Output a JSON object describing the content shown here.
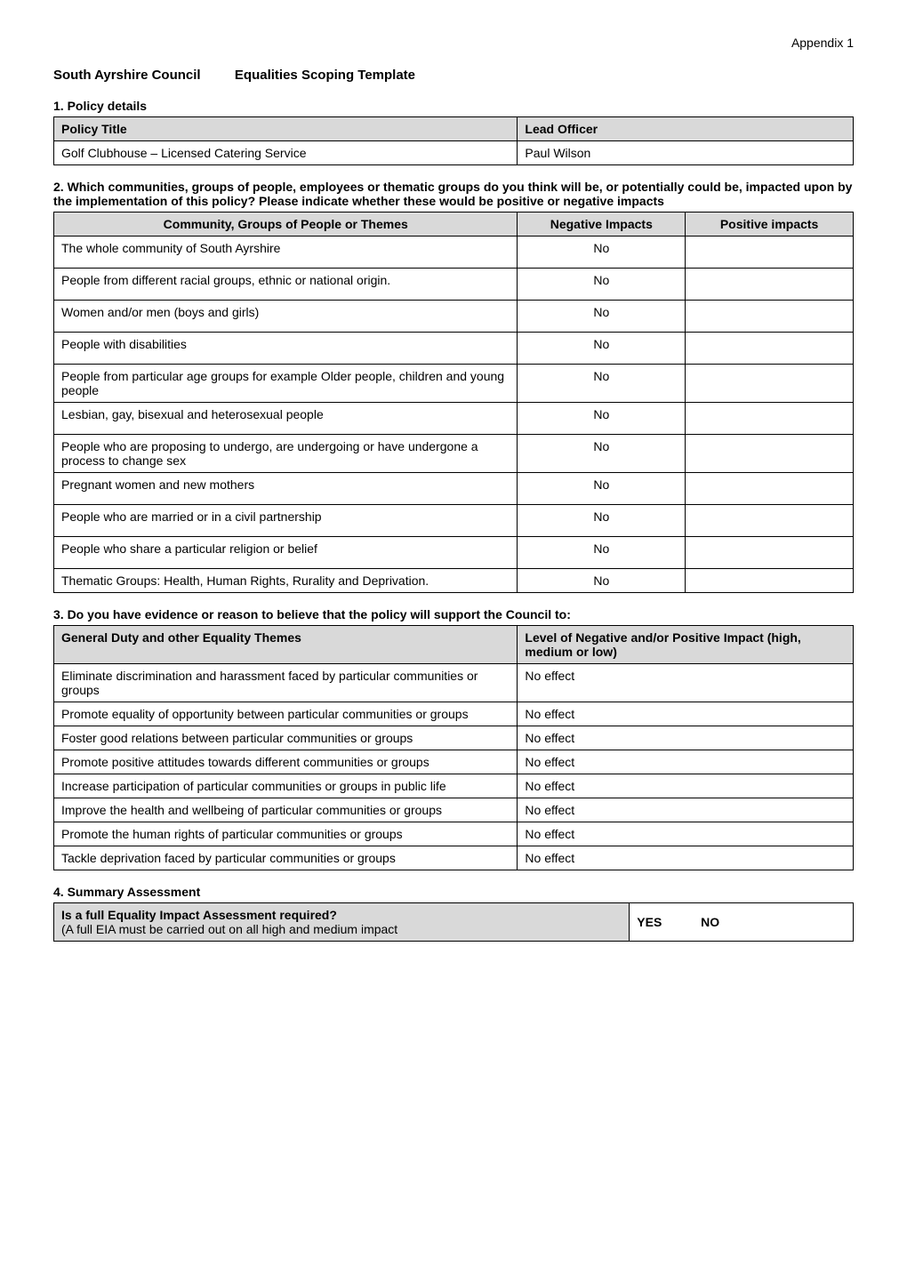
{
  "appendix": "Appendix 1",
  "main_heading_left": "South Ayrshire Council",
  "main_heading_right": "Equalities Scoping Template",
  "section1": {
    "heading": "1.  Policy details",
    "cols": [
      "Policy Title",
      "Lead Officer"
    ],
    "row": [
      "Golf Clubhouse – Licensed Catering Service",
      "Paul Wilson"
    ]
  },
  "section2": {
    "heading": "2.  Which communities, groups of people, employees or thematic groups do you think will be, or potentially could be, impacted upon by the implementation of this policy? Please indicate whether these would be positive or negative impacts",
    "cols": [
      "Community, Groups of People or Themes",
      "Negative Impacts",
      "Positive impacts"
    ],
    "rows": [
      [
        "The whole community of South Ayrshire",
        "No",
        ""
      ],
      [
        "People from different racial groups, ethnic or national origin.",
        "No",
        ""
      ],
      [
        "Women and/or men (boys and girls)",
        "No",
        ""
      ],
      [
        "People with disabilities",
        "No",
        ""
      ],
      [
        "People from particular age groups for example Older people, children and young people",
        "No",
        ""
      ],
      [
        "Lesbian, gay, bisexual and heterosexual people",
        "No",
        ""
      ],
      [
        "People who are proposing to undergo, are undergoing or have undergone a process to change sex",
        "No",
        ""
      ],
      [
        "Pregnant women and new mothers",
        "No",
        ""
      ],
      [
        "People who are married or in a civil partnership",
        "No",
        ""
      ],
      [
        "People who share a particular religion or belief",
        "No",
        ""
      ],
      [
        "Thematic Groups: Health, Human Rights, Rurality and Deprivation.",
        "No",
        ""
      ]
    ]
  },
  "section3": {
    "heading": "3.  Do you have evidence or reason to believe that the policy will support the Council to:",
    "cols": [
      "General Duty and other Equality Themes",
      "Level of Negative and/or Positive Impact  (high, medium or low)"
    ],
    "rows": [
      [
        "Eliminate discrimination and harassment faced by particular communities or groups",
        "No effect"
      ],
      [
        "Promote equality of opportunity between particular communities or groups",
        "No effect"
      ],
      [
        "Foster good relations between particular communities or groups",
        "No effect"
      ],
      [
        "Promote positive attitudes towards different communities or groups",
        "No effect"
      ],
      [
        "Increase participation of particular communities or groups in public life",
        "No effect"
      ],
      [
        "Improve the health and wellbeing of particular communities or groups",
        "No effect"
      ],
      [
        "Promote the human rights of particular communities or groups",
        "No effect"
      ],
      [
        "Tackle deprivation faced by particular communities or groups",
        "No effect"
      ]
    ]
  },
  "section4": {
    "heading": "4. Summary Assessment",
    "question_line1": "Is a full Equality Impact Assessment required?",
    "question_line2": "(A full EIA must be carried out on all high and medium impact",
    "yes": "YES",
    "no": "NO"
  },
  "layout": {
    "col_widths_s1": [
      "58%",
      "42%"
    ],
    "col_widths_s2": [
      "58%",
      "21%",
      "21%"
    ],
    "col_widths_s3": [
      "58%",
      "42%"
    ],
    "col_widths_s4": [
      "72%",
      "28%"
    ]
  },
  "styling": {
    "header_bg": "#d9d9d9",
    "border_color": "#000000",
    "background_color": "#ffffff",
    "text_color": "#000000",
    "base_fontsize": 14
  }
}
